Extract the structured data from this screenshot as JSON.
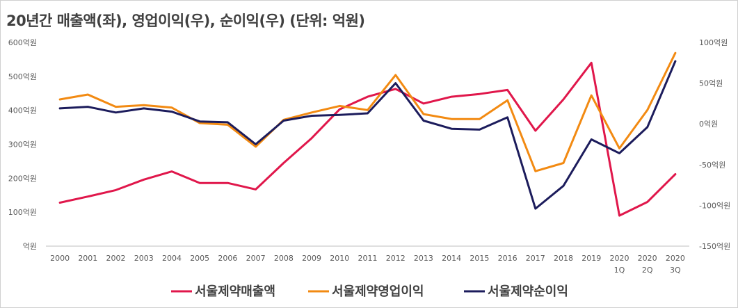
{
  "title": "20년간 매출액(좌), 영업이익(우), 순이익(우) (단위: 억원)",
  "chart_data": {
    "type": "line",
    "title": "20년간 매출액(좌), 영업이익(우), 순이익(우) (단위: 억원)",
    "categories": [
      "2000",
      "2001",
      "2002",
      "2003",
      "2004",
      "2005",
      "2006",
      "2007",
      "2008",
      "2009",
      "2010",
      "2011",
      "2012",
      "2013",
      "2014",
      "2015",
      "2016",
      "2017",
      "2018",
      "2019",
      "2020 1Q",
      "2020 2Q",
      "2020 3Q"
    ],
    "x_tick_lines": [
      [
        "2000"
      ],
      [
        "2001"
      ],
      [
        "2002"
      ],
      [
        "2003"
      ],
      [
        "2004"
      ],
      [
        "2005"
      ],
      [
        "2006"
      ],
      [
        "2007"
      ],
      [
        "2008"
      ],
      [
        "2009"
      ],
      [
        "2010"
      ],
      [
        "2011"
      ],
      [
        "2012"
      ],
      [
        "2013"
      ],
      [
        "2014"
      ],
      [
        "2015"
      ],
      [
        "2016"
      ],
      [
        "2017"
      ],
      [
        "2018"
      ],
      [
        "2019"
      ],
      [
        "2020",
        "1Q"
      ],
      [
        "2020",
        "2Q"
      ],
      [
        "2020",
        "3Q"
      ]
    ],
    "left_axis": {
      "ylim": [
        0,
        600
      ],
      "ticks": [
        0,
        100,
        200,
        300,
        400,
        500,
        600
      ],
      "tick_labels": [
        "억원",
        "100억원",
        "200억원",
        "300억원",
        "400억원",
        "500억원",
        "600억원"
      ]
    },
    "right_axis": {
      "ylim": [
        -150,
        100
      ],
      "ticks": [
        -150,
        -100,
        -50,
        0,
        50,
        100
      ],
      "tick_labels": [
        "-150억원",
        "-100억원",
        "-50억원",
        "0억원",
        "50억원",
        "100억원"
      ]
    },
    "series": [
      {
        "name": "서울제약매출액",
        "axis": "left",
        "color": "#e0174b",
        "values": [
          128,
          146,
          165,
          196,
          220,
          186,
          186,
          167,
          245,
          318,
          403,
          440,
          463,
          420,
          440,
          448,
          460,
          340,
          432,
          540,
          90,
          130,
          212
        ]
      },
      {
        "name": "서울제약영업이익",
        "axis": "right",
        "color": "#f28a12",
        "values": [
          30,
          36,
          21,
          23,
          20,
          1,
          -1,
          -28,
          5,
          14,
          22,
          17,
          60,
          12,
          6,
          6,
          29,
          -58,
          -48,
          35,
          -30,
          17,
          87
        ]
      },
      {
        "name": "서울제약순이익",
        "axis": "right",
        "color": "#1c1c5c",
        "values": [
          19,
          21,
          14,
          19,
          15,
          3,
          2,
          -25,
          4,
          10,
          11,
          13,
          50,
          4,
          -6,
          -7,
          8,
          -104,
          -76,
          -19,
          -36,
          -4,
          77
        ]
      }
    ],
    "legend": {
      "position": "bottom"
    },
    "grid": false
  }
}
